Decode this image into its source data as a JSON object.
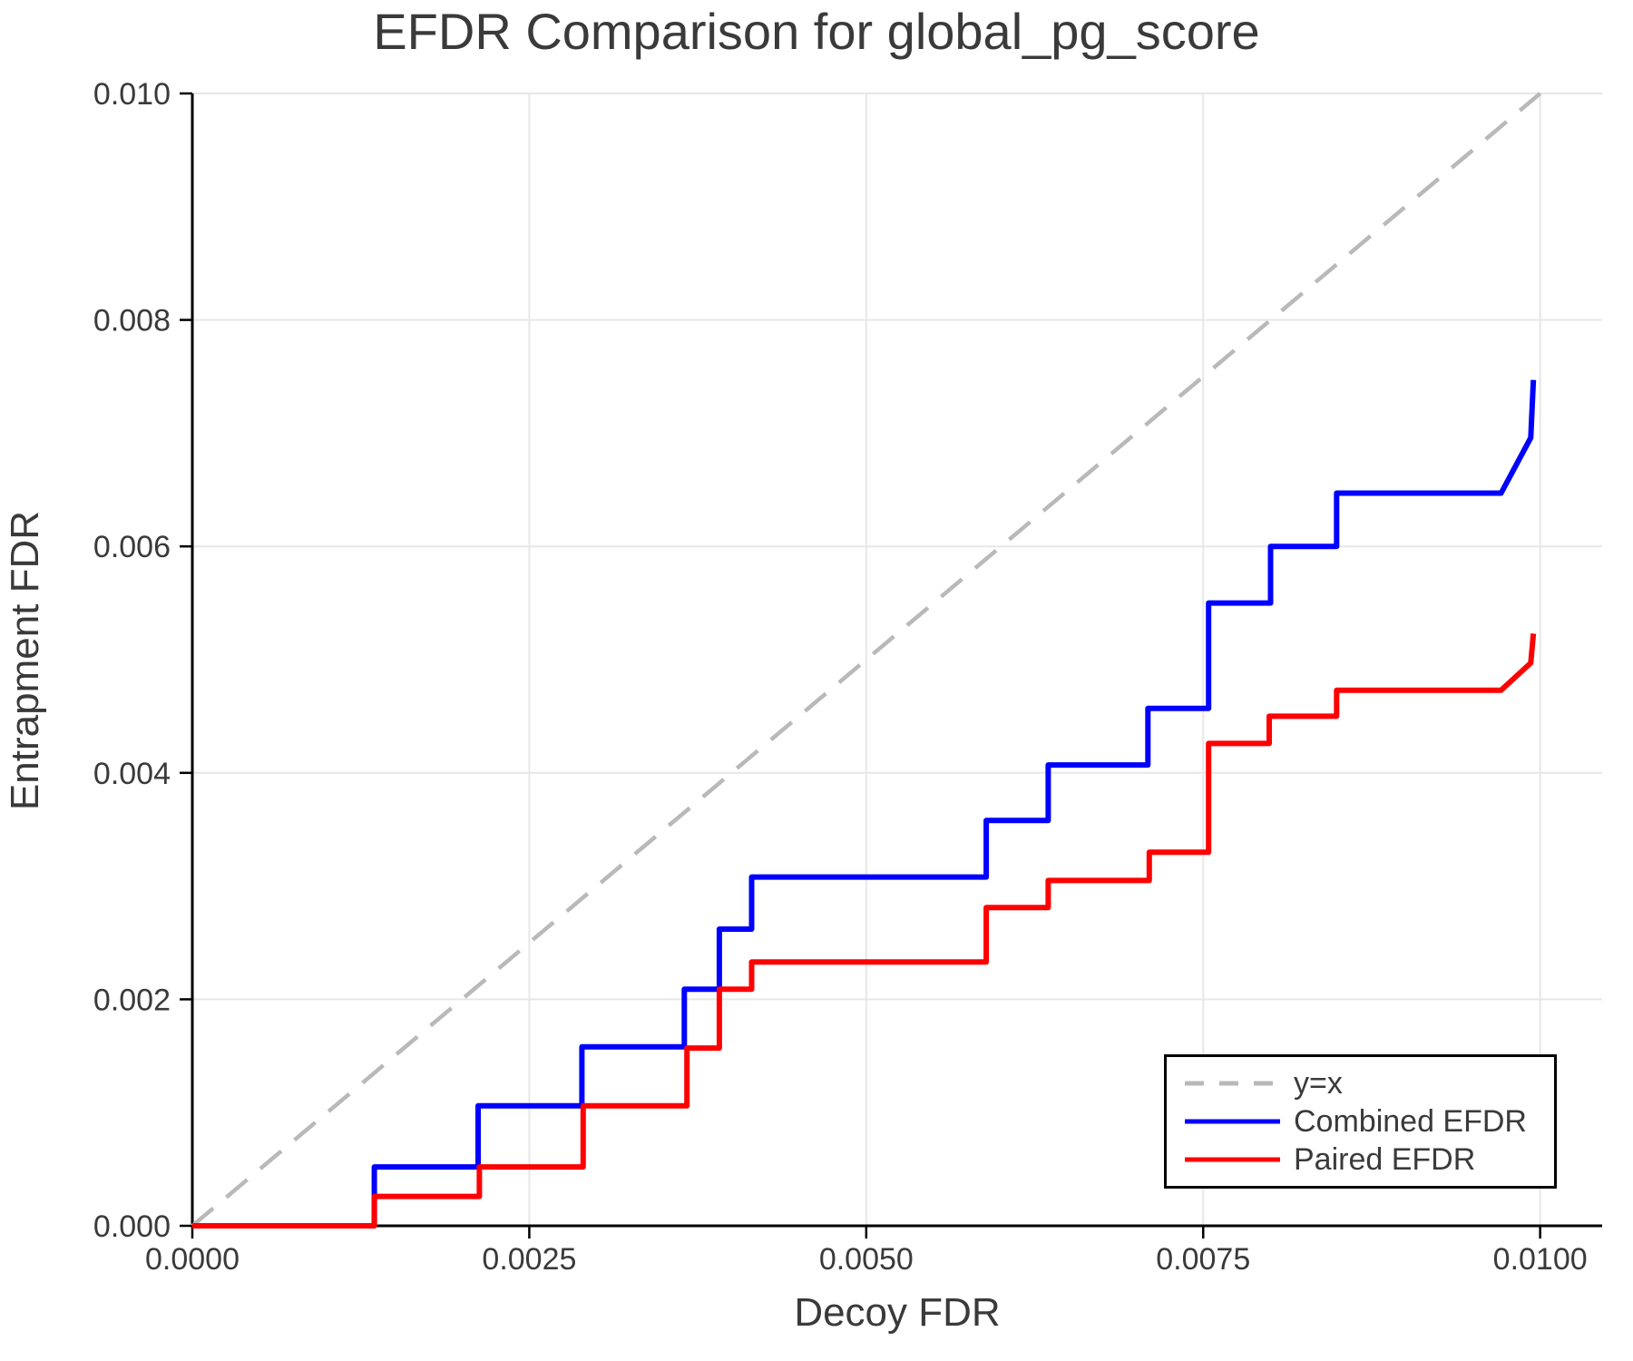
{
  "colors": {
    "background": "#ffffff",
    "grid": "#e7e7e7",
    "spine": "#000000",
    "tick": "#000000",
    "text": "#3a3a3a",
    "legend_border": "#000000"
  },
  "chart_data": {
    "type": "line",
    "title": "EFDR Comparison for global_pg_score",
    "xlabel": "Decoy FDR",
    "ylabel": "Entrapment FDR",
    "xlim": [
      0,
      0.01046
    ],
    "ylim": [
      0,
      0.01
    ],
    "grid": true,
    "legend_position": "lower right",
    "xticks": {
      "values": [
        0,
        0.0025,
        0.005,
        0.0075,
        0.01
      ],
      "labels": [
        "0.0000",
        "0.0025",
        "0.0050",
        "0.0075",
        "0.0100"
      ]
    },
    "yticks": {
      "values": [
        0,
        0.002,
        0.004,
        0.006,
        0.008,
        0.01
      ],
      "labels": [
        "0.000",
        "0.002",
        "0.004",
        "0.006",
        "0.008",
        "0.010"
      ]
    },
    "series": [
      {
        "name": "y=x",
        "color": "#b9b9b9",
        "style": "dashed",
        "width": 4.5,
        "points": [
          [
            0,
            0
          ],
          [
            0.01,
            0.01
          ]
        ]
      },
      {
        "name": "Combined EFDR",
        "color": "#0000ff",
        "style": "solid",
        "width": 6,
        "points": [
          [
            0,
            0
          ],
          [
            0.00135,
            0
          ],
          [
            0.00135,
            0.00052
          ],
          [
            0.00212,
            0.00052
          ],
          [
            0.00212,
            0.00106
          ],
          [
            0.00289,
            0.00106
          ],
          [
            0.00289,
            0.00158
          ],
          [
            0.00365,
            0.00158
          ],
          [
            0.00365,
            0.00209
          ],
          [
            0.00391,
            0.00209
          ],
          [
            0.00391,
            0.00262
          ],
          [
            0.00415,
            0.00262
          ],
          [
            0.00415,
            0.00308
          ],
          [
            0.00589,
            0.00308
          ],
          [
            0.00589,
            0.00358
          ],
          [
            0.00635,
            0.00358
          ],
          [
            0.00635,
            0.00407
          ],
          [
            0.00709,
            0.00407
          ],
          [
            0.00709,
            0.00457
          ],
          [
            0.00754,
            0.00457
          ],
          [
            0.00754,
            0.0055
          ],
          [
            0.008,
            0.0055
          ],
          [
            0.008,
            0.006
          ],
          [
            0.00849,
            0.006
          ],
          [
            0.00849,
            0.00647
          ],
          [
            0.00971,
            0.00647
          ],
          [
            0.00993,
            0.00696
          ],
          [
            0.00995,
            0.00747
          ]
        ]
      },
      {
        "name": "Paired EFDR",
        "color": "#ff0000",
        "style": "solid",
        "width": 6,
        "points": [
          [
            0,
            0
          ],
          [
            0.00135,
            0
          ],
          [
            0.00135,
            0.00026
          ],
          [
            0.00213,
            0.00026
          ],
          [
            0.00213,
            0.00052
          ],
          [
            0.0029,
            0.00052
          ],
          [
            0.0029,
            0.00106
          ],
          [
            0.00367,
            0.00106
          ],
          [
            0.00367,
            0.00157
          ],
          [
            0.00391,
            0.00157
          ],
          [
            0.00391,
            0.00209
          ],
          [
            0.00415,
            0.00209
          ],
          [
            0.00415,
            0.00233
          ],
          [
            0.00589,
            0.00233
          ],
          [
            0.00589,
            0.00281
          ],
          [
            0.00635,
            0.00281
          ],
          [
            0.00635,
            0.00305
          ],
          [
            0.0071,
            0.00305
          ],
          [
            0.0071,
            0.0033
          ],
          [
            0.00754,
            0.0033
          ],
          [
            0.00754,
            0.00426
          ],
          [
            0.00799,
            0.00426
          ],
          [
            0.00799,
            0.0045
          ],
          [
            0.00849,
            0.0045
          ],
          [
            0.00849,
            0.00473
          ],
          [
            0.00971,
            0.00473
          ],
          [
            0.00993,
            0.00497
          ],
          [
            0.00995,
            0.00523
          ]
        ]
      }
    ]
  }
}
